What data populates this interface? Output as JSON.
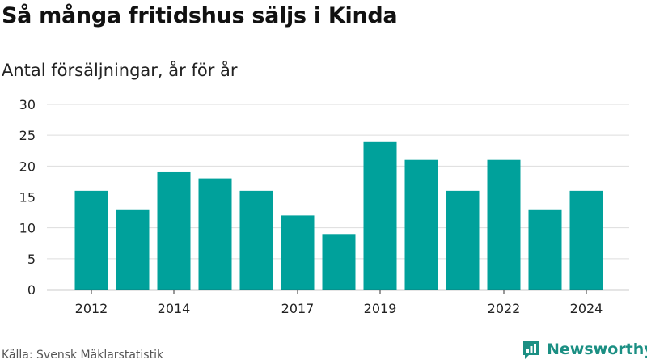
{
  "header": {
    "title": "Så många fritidshus säljs i Kinda",
    "subtitle": "Antal försäljningar, år för år"
  },
  "footer": {
    "source": "Källa: Svensk Mäklarstatistik",
    "brand": "Newsworthy",
    "brand_icon": "newsworthy-logo-icon"
  },
  "colors": {
    "bar": "#00a19b",
    "grid": "#dddddd",
    "axis": "#333333",
    "brand": "#1b8f83"
  },
  "chart_data": {
    "type": "bar",
    "title": "Så många fritidshus säljs i Kinda",
    "subtitle": "Antal försäljningar, år för år",
    "categories": [
      "2012",
      "2013",
      "2014",
      "2015",
      "2016",
      "2017",
      "2018",
      "2019",
      "2020",
      "2021",
      "2022",
      "2023",
      "2024"
    ],
    "values": [
      16,
      13,
      19,
      18,
      16,
      12,
      9,
      24,
      21,
      16,
      21,
      13,
      16
    ],
    "x_tick_labels": [
      "2012",
      "",
      "2014",
      "",
      "",
      "2017",
      "",
      "2019",
      "",
      "",
      "2022",
      "",
      "2024"
    ],
    "y_ticks": [
      0,
      5,
      10,
      15,
      20,
      25,
      30
    ],
    "ylim": [
      0,
      30
    ],
    "grid": true,
    "xlabel": "",
    "ylabel": ""
  }
}
